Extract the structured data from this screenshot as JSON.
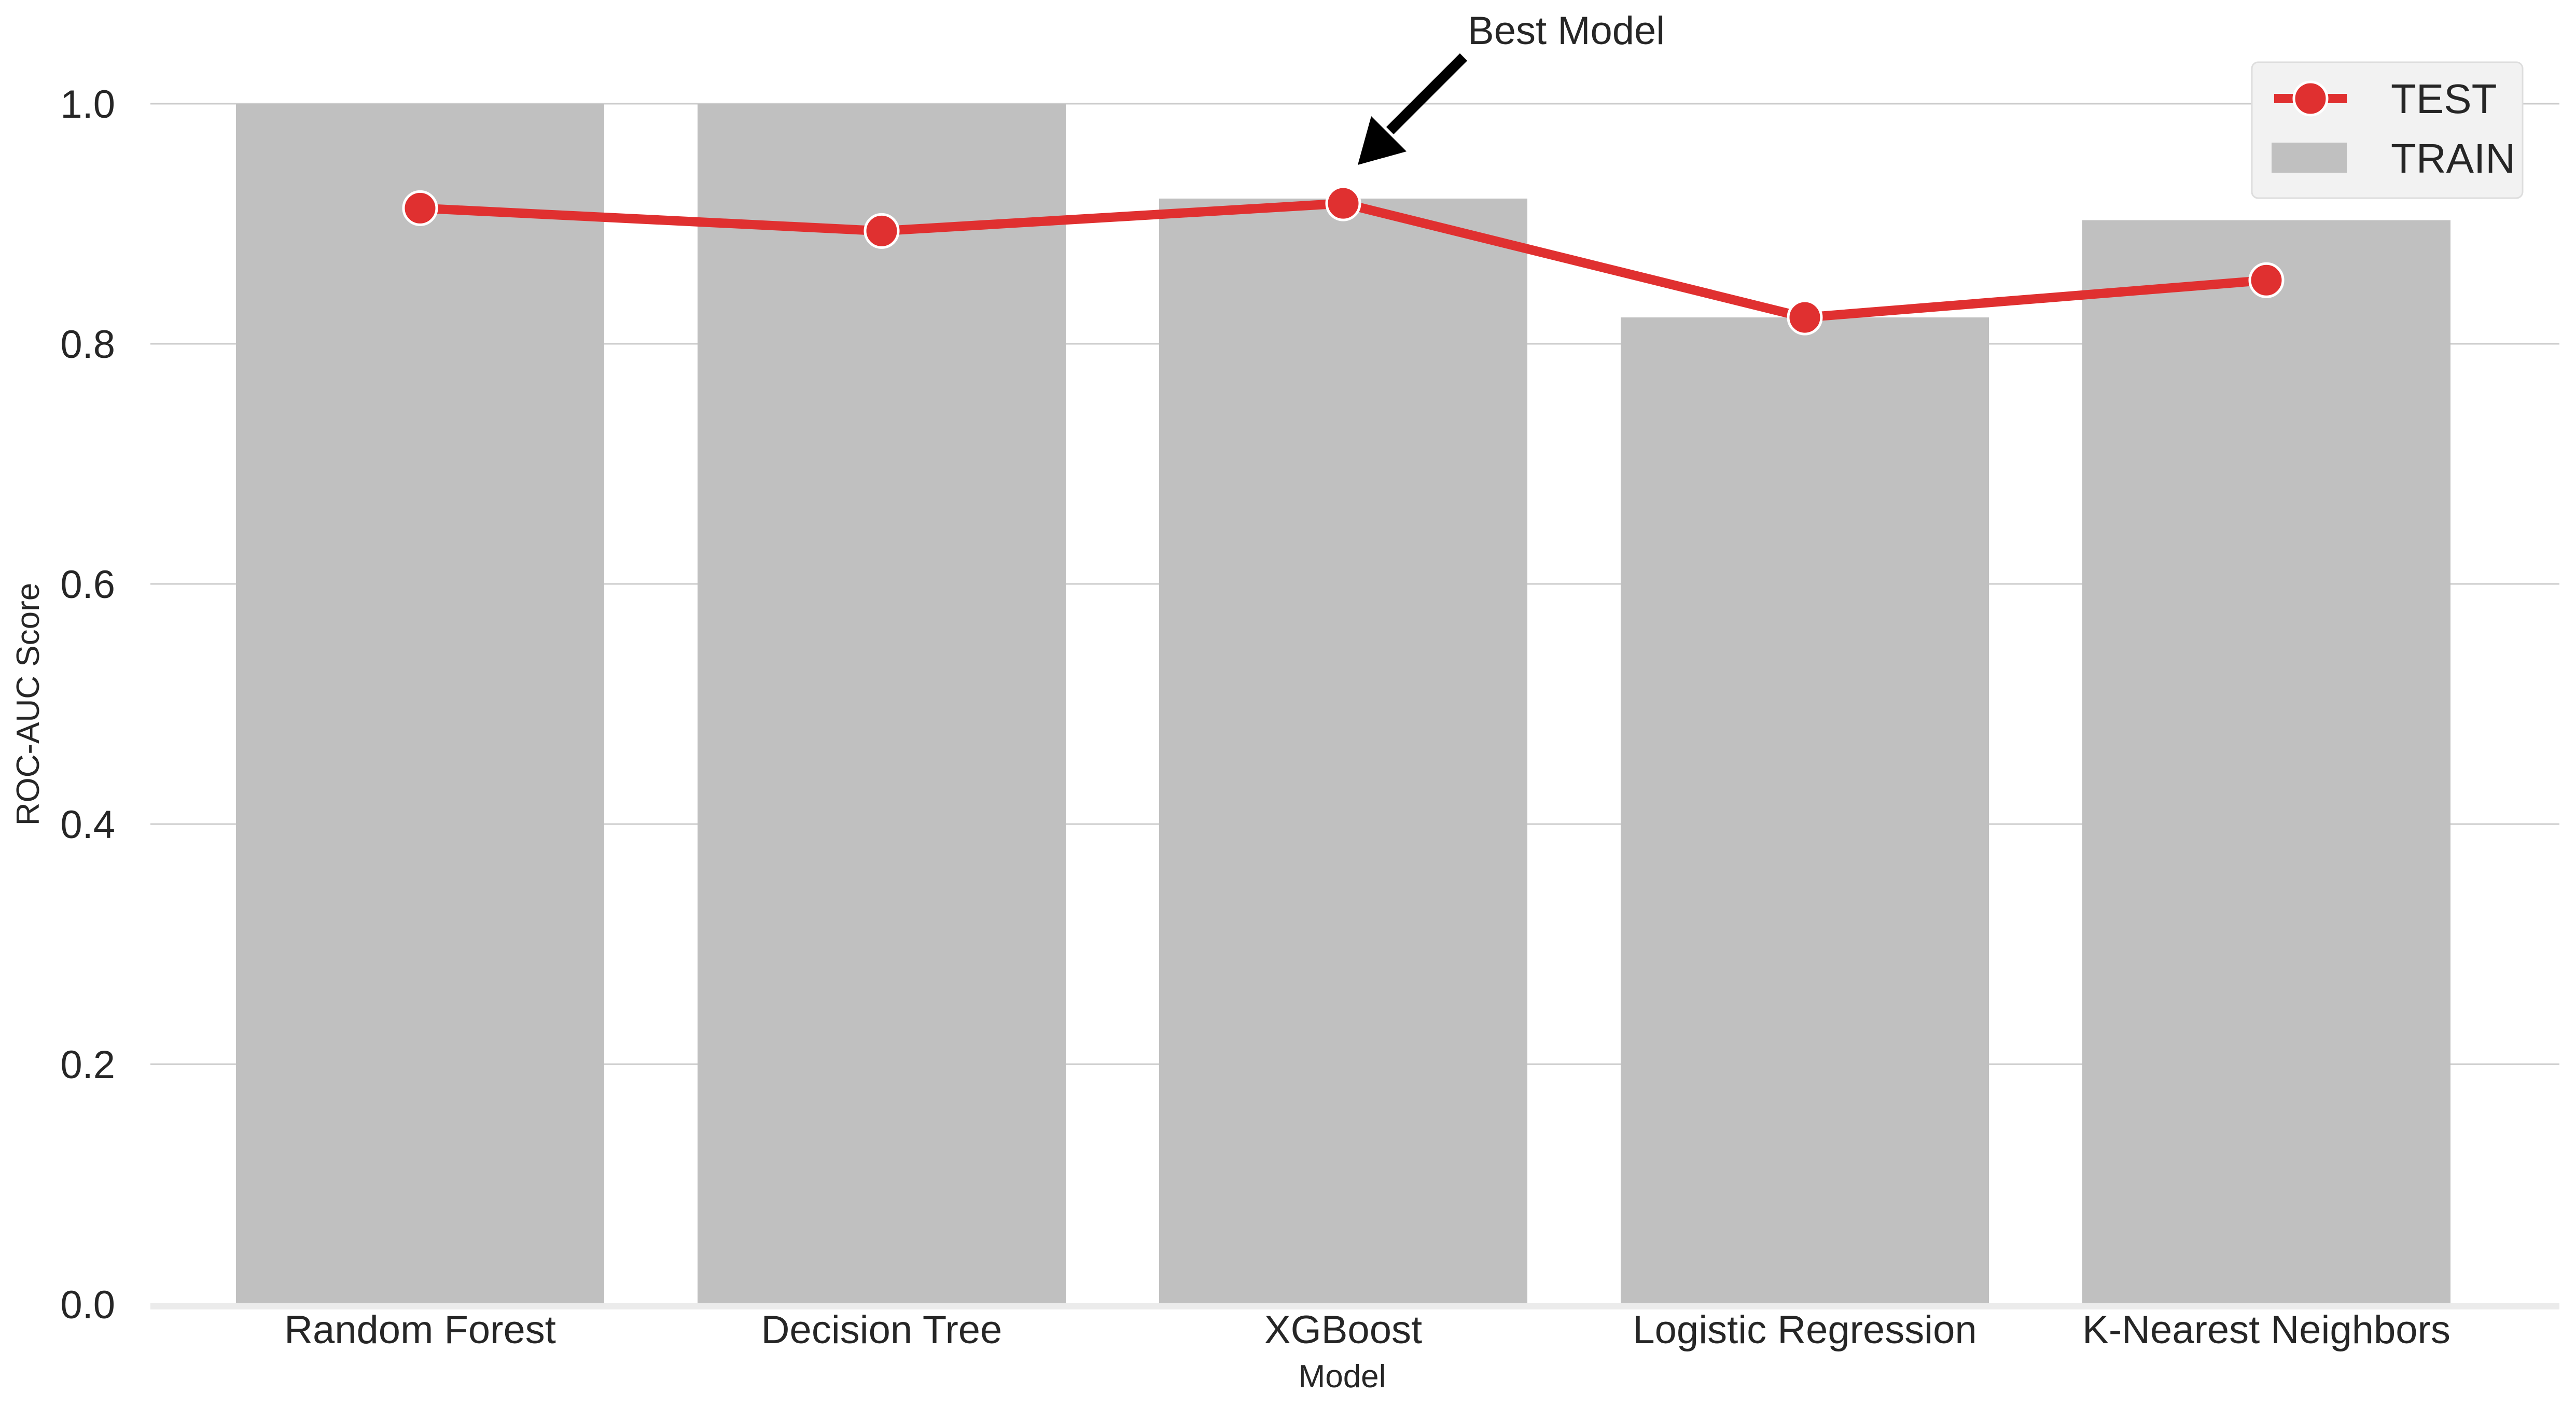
{
  "chart_data": {
    "type": "bar",
    "categories": [
      "Random Forest",
      "Decision Tree",
      "XGBoost",
      "Logistic Regression",
      "K-Nearest Neighbors"
    ],
    "series": [
      {
        "name": "TRAIN",
        "type": "bar",
        "values": [
          1.0,
          1.0,
          0.921,
          0.822,
          0.903
        ]
      },
      {
        "name": "TEST",
        "type": "line",
        "values": [
          0.913,
          0.894,
          0.917,
          0.822,
          0.853
        ]
      }
    ],
    "title": "",
    "xlabel": "Model",
    "ylabel": "ROC-AUC Score",
    "ylim": [
      0,
      1.0
    ],
    "yticks": [
      "0.0",
      "0.2",
      "0.4",
      "0.6",
      "0.8",
      "1.0"
    ],
    "grid": "horizontal",
    "legend": "top-right",
    "annotation": {
      "text": "Best Model",
      "target_category": "XGBoost"
    },
    "colors": {
      "bar": "#c0c0c0",
      "line": "#e03030",
      "grid": "#cccccc",
      "text": "#262626"
    }
  }
}
